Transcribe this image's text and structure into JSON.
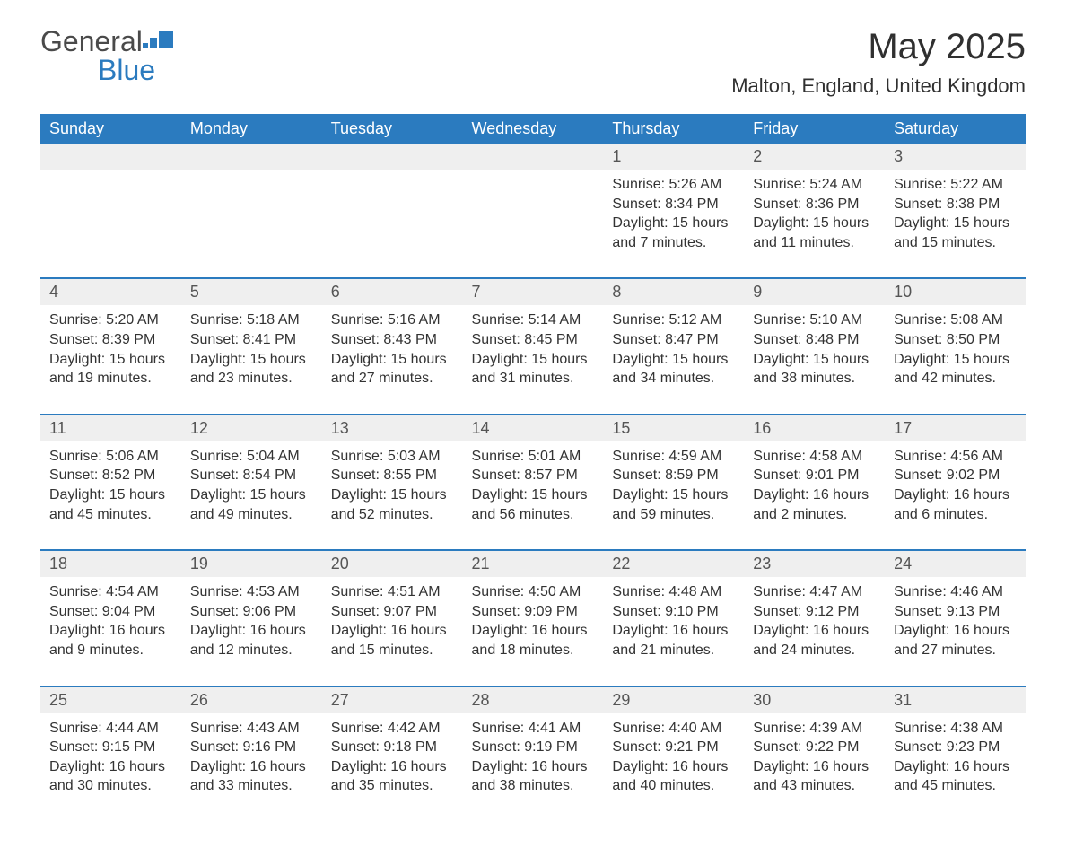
{
  "logo": {
    "word1": "General",
    "word2": "Blue"
  },
  "title": "May 2025",
  "subtitle": "Malton, England, United Kingdom",
  "colors": {
    "brand_blue": "#2b7bbf",
    "header_text": "#ffffff",
    "daynum_bg": "#efefef",
    "body_text": "#333333",
    "daynum_text": "#555555",
    "page_bg": "#ffffff"
  },
  "typography": {
    "title_fontsize": 40,
    "subtitle_fontsize": 22,
    "header_fontsize": 18,
    "daynum_fontsize": 18,
    "detail_fontsize": 16,
    "logo_fontsize": 32
  },
  "columns": [
    "Sunday",
    "Monday",
    "Tuesday",
    "Wednesday",
    "Thursday",
    "Friday",
    "Saturday"
  ],
  "weeks": [
    [
      null,
      null,
      null,
      null,
      {
        "n": "1",
        "sr": "Sunrise: 5:26 AM",
        "ss": "Sunset: 8:34 PM",
        "dl": "Daylight: 15 hours and 7 minutes."
      },
      {
        "n": "2",
        "sr": "Sunrise: 5:24 AM",
        "ss": "Sunset: 8:36 PM",
        "dl": "Daylight: 15 hours and 11 minutes."
      },
      {
        "n": "3",
        "sr": "Sunrise: 5:22 AM",
        "ss": "Sunset: 8:38 PM",
        "dl": "Daylight: 15 hours and 15 minutes."
      }
    ],
    [
      {
        "n": "4",
        "sr": "Sunrise: 5:20 AM",
        "ss": "Sunset: 8:39 PM",
        "dl": "Daylight: 15 hours and 19 minutes."
      },
      {
        "n": "5",
        "sr": "Sunrise: 5:18 AM",
        "ss": "Sunset: 8:41 PM",
        "dl": "Daylight: 15 hours and 23 minutes."
      },
      {
        "n": "6",
        "sr": "Sunrise: 5:16 AM",
        "ss": "Sunset: 8:43 PM",
        "dl": "Daylight: 15 hours and 27 minutes."
      },
      {
        "n": "7",
        "sr": "Sunrise: 5:14 AM",
        "ss": "Sunset: 8:45 PM",
        "dl": "Daylight: 15 hours and 31 minutes."
      },
      {
        "n": "8",
        "sr": "Sunrise: 5:12 AM",
        "ss": "Sunset: 8:47 PM",
        "dl": "Daylight: 15 hours and 34 minutes."
      },
      {
        "n": "9",
        "sr": "Sunrise: 5:10 AM",
        "ss": "Sunset: 8:48 PM",
        "dl": "Daylight: 15 hours and 38 minutes."
      },
      {
        "n": "10",
        "sr": "Sunrise: 5:08 AM",
        "ss": "Sunset: 8:50 PM",
        "dl": "Daylight: 15 hours and 42 minutes."
      }
    ],
    [
      {
        "n": "11",
        "sr": "Sunrise: 5:06 AM",
        "ss": "Sunset: 8:52 PM",
        "dl": "Daylight: 15 hours and 45 minutes."
      },
      {
        "n": "12",
        "sr": "Sunrise: 5:04 AM",
        "ss": "Sunset: 8:54 PM",
        "dl": "Daylight: 15 hours and 49 minutes."
      },
      {
        "n": "13",
        "sr": "Sunrise: 5:03 AM",
        "ss": "Sunset: 8:55 PM",
        "dl": "Daylight: 15 hours and 52 minutes."
      },
      {
        "n": "14",
        "sr": "Sunrise: 5:01 AM",
        "ss": "Sunset: 8:57 PM",
        "dl": "Daylight: 15 hours and 56 minutes."
      },
      {
        "n": "15",
        "sr": "Sunrise: 4:59 AM",
        "ss": "Sunset: 8:59 PM",
        "dl": "Daylight: 15 hours and 59 minutes."
      },
      {
        "n": "16",
        "sr": "Sunrise: 4:58 AM",
        "ss": "Sunset: 9:01 PM",
        "dl": "Daylight: 16 hours and 2 minutes."
      },
      {
        "n": "17",
        "sr": "Sunrise: 4:56 AM",
        "ss": "Sunset: 9:02 PM",
        "dl": "Daylight: 16 hours and 6 minutes."
      }
    ],
    [
      {
        "n": "18",
        "sr": "Sunrise: 4:54 AM",
        "ss": "Sunset: 9:04 PM",
        "dl": "Daylight: 16 hours and 9 minutes."
      },
      {
        "n": "19",
        "sr": "Sunrise: 4:53 AM",
        "ss": "Sunset: 9:06 PM",
        "dl": "Daylight: 16 hours and 12 minutes."
      },
      {
        "n": "20",
        "sr": "Sunrise: 4:51 AM",
        "ss": "Sunset: 9:07 PM",
        "dl": "Daylight: 16 hours and 15 minutes."
      },
      {
        "n": "21",
        "sr": "Sunrise: 4:50 AM",
        "ss": "Sunset: 9:09 PM",
        "dl": "Daylight: 16 hours and 18 minutes."
      },
      {
        "n": "22",
        "sr": "Sunrise: 4:48 AM",
        "ss": "Sunset: 9:10 PM",
        "dl": "Daylight: 16 hours and 21 minutes."
      },
      {
        "n": "23",
        "sr": "Sunrise: 4:47 AM",
        "ss": "Sunset: 9:12 PM",
        "dl": "Daylight: 16 hours and 24 minutes."
      },
      {
        "n": "24",
        "sr": "Sunrise: 4:46 AM",
        "ss": "Sunset: 9:13 PM",
        "dl": "Daylight: 16 hours and 27 minutes."
      }
    ],
    [
      {
        "n": "25",
        "sr": "Sunrise: 4:44 AM",
        "ss": "Sunset: 9:15 PM",
        "dl": "Daylight: 16 hours and 30 minutes."
      },
      {
        "n": "26",
        "sr": "Sunrise: 4:43 AM",
        "ss": "Sunset: 9:16 PM",
        "dl": "Daylight: 16 hours and 33 minutes."
      },
      {
        "n": "27",
        "sr": "Sunrise: 4:42 AM",
        "ss": "Sunset: 9:18 PM",
        "dl": "Daylight: 16 hours and 35 minutes."
      },
      {
        "n": "28",
        "sr": "Sunrise: 4:41 AM",
        "ss": "Sunset: 9:19 PM",
        "dl": "Daylight: 16 hours and 38 minutes."
      },
      {
        "n": "29",
        "sr": "Sunrise: 4:40 AM",
        "ss": "Sunset: 9:21 PM",
        "dl": "Daylight: 16 hours and 40 minutes."
      },
      {
        "n": "30",
        "sr": "Sunrise: 4:39 AM",
        "ss": "Sunset: 9:22 PM",
        "dl": "Daylight: 16 hours and 43 minutes."
      },
      {
        "n": "31",
        "sr": "Sunrise: 4:38 AM",
        "ss": "Sunset: 9:23 PM",
        "dl": "Daylight: 16 hours and 45 minutes."
      }
    ]
  ]
}
